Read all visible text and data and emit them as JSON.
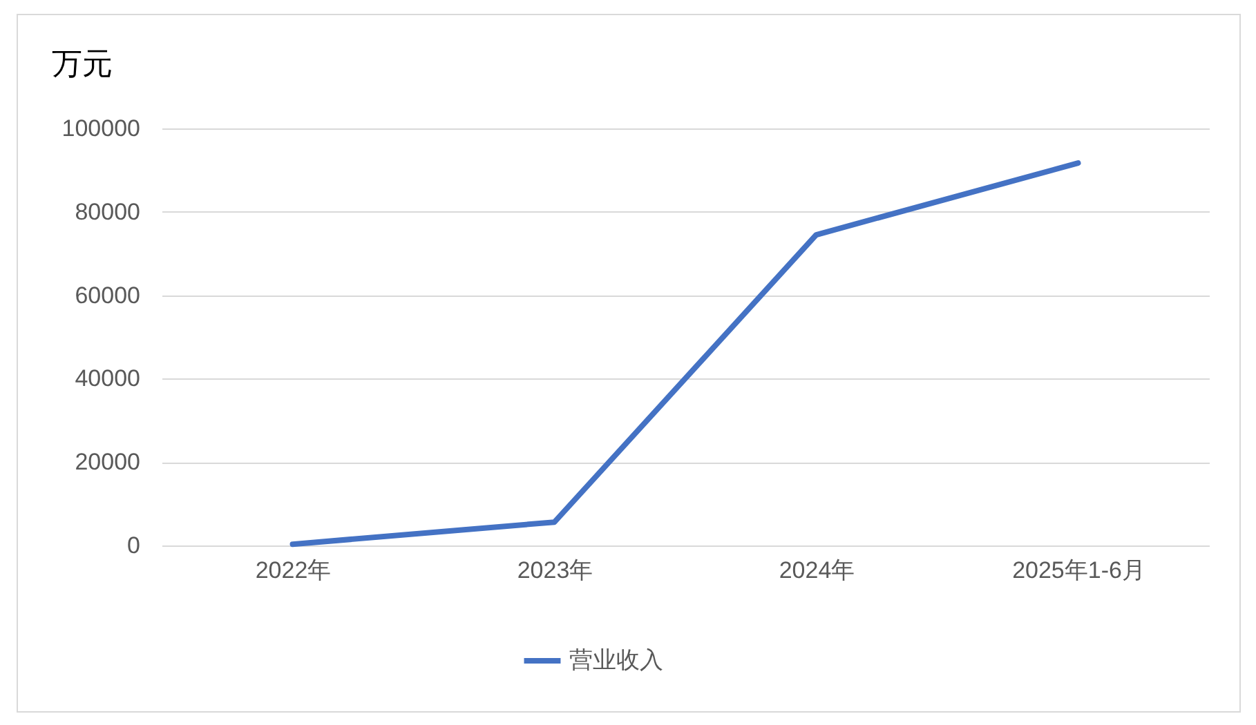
{
  "chart_data": {
    "type": "line",
    "ylabel": "万元",
    "categories": [
      "2022年",
      "2023年",
      "2024年",
      "2025年1-6月"
    ],
    "series": [
      {
        "name": "营业收入",
        "color": "#4472c4",
        "values": [
          300,
          5600,
          74500,
          91700
        ]
      }
    ],
    "ylim": [
      0,
      100000
    ],
    "yticks": [
      0,
      20000,
      40000,
      60000,
      80000,
      100000
    ],
    "grid": "y",
    "legend": "bottom"
  }
}
